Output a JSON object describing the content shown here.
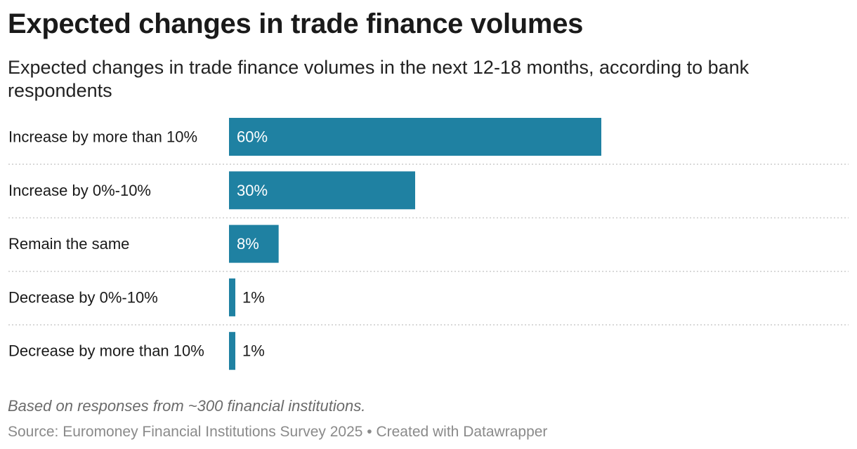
{
  "title": "Expected changes in trade finance volumes",
  "subtitle": "Expected changes in trade finance volumes in the next 12-18 months, according to bank respondents",
  "notes": "Based on responses from ~300 financial institutions.",
  "source": "Source: Euromoney Financial Institutions Survey 2025",
  "separator": " • ",
  "credit": "Created with Datawrapper",
  "colors": {
    "bar": "#1f81a2",
    "label_inside": "#ffffff",
    "label_outside": "#1a1a1a",
    "gridline": "#cccccc"
  },
  "chart_data": {
    "type": "bar",
    "orientation": "horizontal",
    "categories": [
      "Increase by more than 10%",
      "Increase by 0%-10%",
      "Remain the same",
      "Decrease by 0%-10%",
      "Decrease by more than 10%"
    ],
    "values": [
      60,
      30,
      8,
      1,
      1
    ],
    "value_labels": [
      "60%",
      "30%",
      "8%",
      "1%",
      "1%"
    ],
    "unit": "%",
    "xlim": [
      0,
      100
    ],
    "title": "Expected changes in trade finance volumes",
    "subtitle": "Expected changes in trade finance volumes in the next 12-18 months, according to bank respondents",
    "legend": "none",
    "grid": false
  }
}
